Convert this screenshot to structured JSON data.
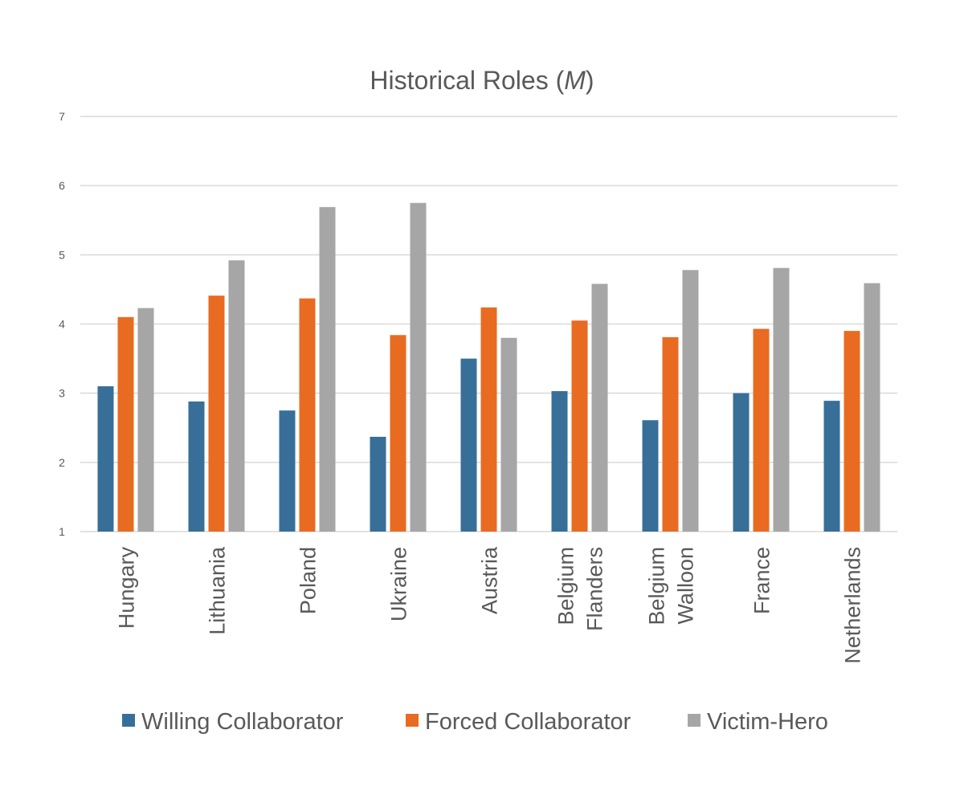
{
  "chart_data": {
    "type": "bar",
    "title": "Historical Roles (M)",
    "title_text": "Historical Roles (",
    "title_italic": "M",
    "title_close": ")",
    "categories": [
      [
        "Hungary"
      ],
      [
        "Lithuania"
      ],
      [
        "Poland"
      ],
      [
        "Ukraine"
      ],
      [
        "Austria"
      ],
      [
        "Belgium",
        "Flanders"
      ],
      [
        "Belgium",
        "Walloon"
      ],
      [
        "France"
      ],
      [
        "Netherlands"
      ]
    ],
    "series": [
      {
        "name": "Willing Collaborator",
        "color": "#376f99",
        "values": [
          3.1,
          2.88,
          2.75,
          2.37,
          3.5,
          3.03,
          2.61,
          3.0,
          2.89
        ]
      },
      {
        "name": "Forced Collaborator",
        "color": "#e86b21",
        "values": [
          4.1,
          4.41,
          4.37,
          3.84,
          4.24,
          4.05,
          3.81,
          3.93,
          3.9
        ]
      },
      {
        "name": "Victim-Hero",
        "color": "#a6a6a6",
        "values": [
          4.23,
          4.92,
          5.69,
          5.75,
          3.8,
          4.58,
          4.78,
          4.81,
          4.59
        ]
      }
    ],
    "ylim": [
      1,
      7
    ],
    "yticks": [
      "1",
      "2",
      "3",
      "4",
      "5",
      "6",
      "7"
    ],
    "grid": true,
    "legend_position": "bottom"
  }
}
